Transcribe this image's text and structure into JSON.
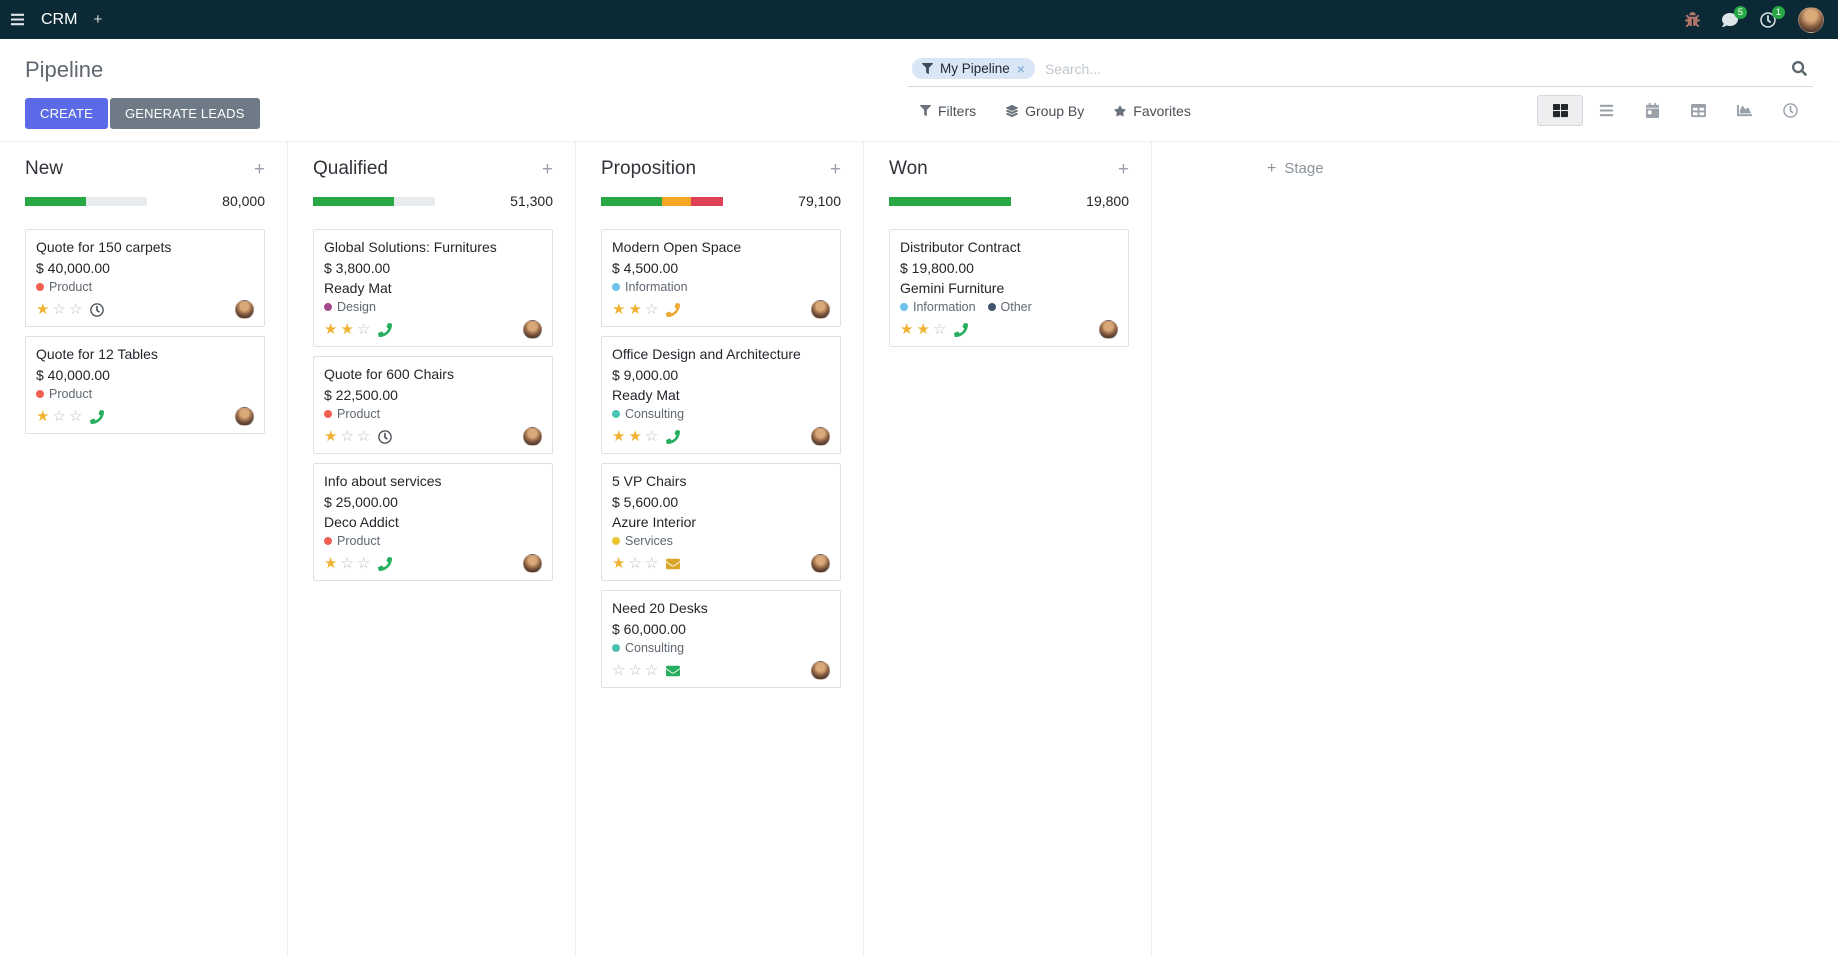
{
  "icons": {
    "plus": "+",
    "close": "×",
    "star_filled": "★",
    "star_empty": "☆"
  },
  "topbar": {
    "app_name": "CRM",
    "messages_badge": "5",
    "activities_badge": "1"
  },
  "control_panel": {
    "title": "Pipeline",
    "create_label": "CREATE",
    "generate_leads_label": "GENERATE LEADS",
    "search": {
      "facet_label": "My Pipeline",
      "placeholder": "Search..."
    },
    "filters_label": "Filters",
    "group_by_label": "Group By",
    "favorites_label": "Favorites"
  },
  "board": {
    "add_stage_label": "Stage",
    "columns": [
      {
        "name": "New",
        "total": "80,000",
        "progress": [
          {
            "color": "#28a745",
            "pct": 50
          }
        ],
        "cards": [
          {
            "title": "Quote for 150 carpets",
            "amount": "$ 40,000.00",
            "tags": [
              {
                "label": "Product",
                "color": "#f06050"
              }
            ],
            "stars": 1,
            "activity": {
              "icon": "clock-icon",
              "color": "#43484d"
            }
          },
          {
            "title": "Quote for 12 Tables",
            "amount": "$ 40,000.00",
            "tags": [
              {
                "label": "Product",
                "color": "#f06050"
              }
            ],
            "stars": 1,
            "activity": {
              "icon": "phone-icon",
              "color": "#27ae60"
            }
          }
        ]
      },
      {
        "name": "Qualified",
        "total": "51,300",
        "progress": [
          {
            "color": "#28a745",
            "pct": 66
          }
        ],
        "cards": [
          {
            "title": "Global Solutions: Furnitures",
            "amount": "$ 3,800.00",
            "partner": "Ready Mat",
            "tags": [
              {
                "label": "Design",
                "color": "#a3478c"
              }
            ],
            "stars": 2,
            "activity": {
              "icon": "phone-icon",
              "color": "#27ae60"
            }
          },
          {
            "title": "Quote for 600 Chairs",
            "amount": "$ 22,500.00",
            "tags": [
              {
                "label": "Product",
                "color": "#f06050"
              }
            ],
            "stars": 1,
            "activity": {
              "icon": "clock-icon",
              "color": "#43484d"
            }
          },
          {
            "title": "Info about services",
            "amount": "$ 25,000.00",
            "partner": "Deco Addict",
            "tags": [
              {
                "label": "Product",
                "color": "#f06050"
              }
            ],
            "stars": 1,
            "activity": {
              "icon": "phone-icon",
              "color": "#27ae60"
            }
          }
        ]
      },
      {
        "name": "Proposition",
        "total": "79,100",
        "progress": [
          {
            "color": "#28a745",
            "pct": 50
          },
          {
            "color": "#f5a623",
            "pct": 24
          },
          {
            "color": "#de4156",
            "pct": 26
          }
        ],
        "cards": [
          {
            "title": "Modern Open Space",
            "amount": "$ 4,500.00",
            "tags": [
              {
                "label": "Information",
                "color": "#6cc1ed"
              }
            ],
            "stars": 2,
            "activity": {
              "icon": "phone-icon",
              "color": "#efa934"
            }
          },
          {
            "title": "Office Design and Architecture",
            "amount": "$ 9,000.00",
            "partner": "Ready Mat",
            "tags": [
              {
                "label": "Consulting",
                "color": "#49c5b1"
              }
            ],
            "stars": 2,
            "activity": {
              "icon": "phone-icon",
              "color": "#27ae60"
            }
          },
          {
            "title": "5 VP Chairs",
            "amount": "$ 5,600.00",
            "partner": "Azure Interior",
            "tags": [
              {
                "label": "Services",
                "color": "#edc431"
              }
            ],
            "stars": 1,
            "activity": {
              "icon": "envelope-icon",
              "color": "#d9a62a"
            }
          },
          {
            "title": "Need 20 Desks",
            "amount": "$ 60,000.00",
            "tags": [
              {
                "label": "Consulting",
                "color": "#49c5b1"
              }
            ],
            "stars": 0,
            "activity": {
              "icon": "envelope-icon",
              "color": "#27ae60"
            }
          }
        ]
      },
      {
        "name": "Won",
        "total": "19,800",
        "progress": [
          {
            "color": "#28a745",
            "pct": 100
          }
        ],
        "cards": [
          {
            "title": "Distributor Contract",
            "amount": "$ 19,800.00",
            "partner": "Gemini Furniture",
            "tags": [
              {
                "label": "Information",
                "color": "#6cc1ed"
              },
              {
                "label": "Other",
                "color": "#44546d"
              }
            ],
            "stars": 2,
            "activity": {
              "icon": "phone-icon",
              "color": "#27ae60"
            }
          }
        ]
      }
    ]
  }
}
